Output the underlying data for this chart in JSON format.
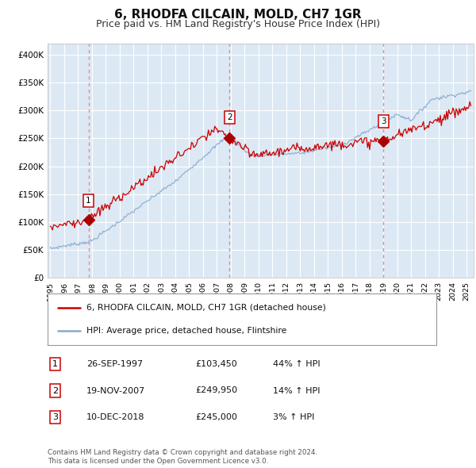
{
  "title": "6, RHODFA CILCAIN, MOLD, CH7 1GR",
  "subtitle": "Price paid vs. HM Land Registry's House Price Index (HPI)",
  "title_fontsize": 11,
  "subtitle_fontsize": 9,
  "background_color": "#ffffff",
  "plot_bg_color": "#dce9f5",
  "grid_color": "#ffffff",
  "sale_prices": [
    103450,
    249950,
    245000
  ],
  "sale_labels": [
    "1",
    "2",
    "3"
  ],
  "sale_pct": [
    "44% ↑ HPI",
    "14% ↑ HPI",
    "3% ↑ HPI"
  ],
  "sale_date_str": [
    "26-SEP-1997",
    "19-NOV-2007",
    "10-DEC-2018"
  ],
  "sale_price_str": [
    "£103,450",
    "£249,950",
    "£245,000"
  ],
  "legend_line1": "6, RHODFA CILCAIN, MOLD, CH7 1GR (detached house)",
  "legend_line2": "HPI: Average price, detached house, Flintshire",
  "footer1": "Contains HM Land Registry data © Crown copyright and database right 2024.",
  "footer2": "This data is licensed under the Open Government Licence v3.0.",
  "line_color": "#cc0000",
  "hpi_color": "#88aacc",
  "vline_color": "#ee8888",
  "dot_color": "#aa0000",
  "ylim": [
    0,
    420000
  ],
  "yticks": [
    0,
    50000,
    100000,
    150000,
    200000,
    250000,
    300000,
    350000,
    400000
  ],
  "xlim_start": 1994.8,
  "xlim_end": 2025.5
}
